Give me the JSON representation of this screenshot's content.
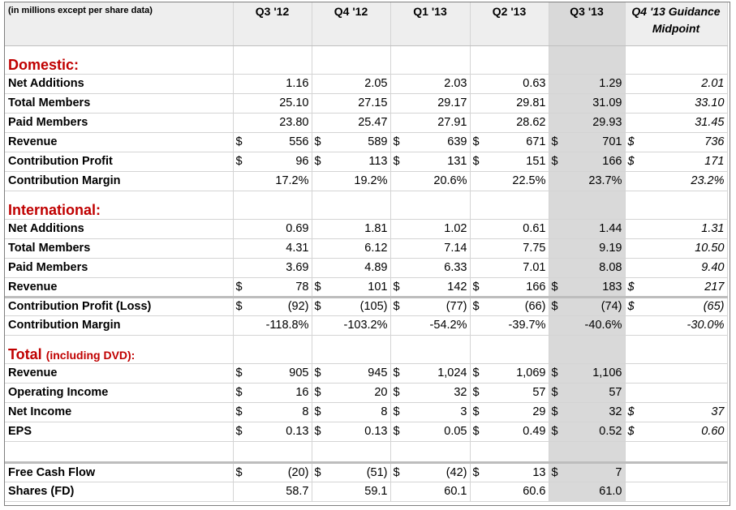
{
  "header": {
    "corner": "(in millions except per share data)",
    "quarters": [
      "Q3 '12",
      "Q4 '12",
      "Q1 '13",
      "Q2 '13",
      "Q3 '13"
    ],
    "guidance": "Q4 '13 Guidance Midpoint"
  },
  "sections": {
    "domestic": "Domestic:",
    "international": "International:",
    "total": "Total",
    "total_sub": "(including DVD):"
  },
  "rows": {
    "d_net_add": {
      "label": "Net Additions",
      "values": [
        "1.16",
        "2.05",
        "2.03",
        "0.63",
        "1.29"
      ],
      "guidance": "2.01"
    },
    "d_total_mem": {
      "label": "Total Members",
      "values": [
        "25.10",
        "27.15",
        "29.17",
        "29.81",
        "31.09"
      ],
      "guidance": "33.10"
    },
    "d_paid_mem": {
      "label": "Paid Members",
      "values": [
        "23.80",
        "25.47",
        "27.91",
        "28.62",
        "29.93"
      ],
      "guidance": "31.45"
    },
    "d_revenue": {
      "label": "Revenue",
      "values": [
        "556",
        "589",
        "639",
        "671",
        "701"
      ],
      "guidance": "736"
    },
    "d_contrib": {
      "label": "Contribution Profit",
      "values": [
        "96",
        "113",
        "131",
        "151",
        "166"
      ],
      "guidance": "171"
    },
    "d_margin": {
      "label": "Contribution Margin",
      "values": [
        "17.2%",
        "19.2%",
        "20.6%",
        "22.5%",
        "23.7%"
      ],
      "guidance": "23.2%"
    },
    "i_net_add": {
      "label": "Net Additions",
      "values": [
        "0.69",
        "1.81",
        "1.02",
        "0.61",
        "1.44"
      ],
      "guidance": "1.31"
    },
    "i_total_mem": {
      "label": "Total Members",
      "values": [
        "4.31",
        "6.12",
        "7.14",
        "7.75",
        "9.19"
      ],
      "guidance": "10.50"
    },
    "i_paid_mem": {
      "label": "Paid Members",
      "values": [
        "3.69",
        "4.89",
        "6.33",
        "7.01",
        "8.08"
      ],
      "guidance": "9.40"
    },
    "i_revenue": {
      "label": "Revenue",
      "values": [
        "78",
        "101",
        "142",
        "166",
        "183"
      ],
      "guidance": "217"
    },
    "i_contrib": {
      "label": "Contribution Profit (Loss)",
      "values": [
        "(92)",
        "(105)",
        "(77)",
        "(66)",
        "(74)"
      ],
      "guidance": "(65)"
    },
    "i_margin": {
      "label": "Contribution Margin",
      "values": [
        "-118.8%",
        "-103.2%",
        "-54.2%",
        "-39.7%",
        "-40.6%"
      ],
      "guidance": "-30.0%"
    },
    "t_revenue": {
      "label": "Revenue",
      "values": [
        "905",
        "945",
        "1,024",
        "1,069",
        "1,106"
      ],
      "guidance": ""
    },
    "t_op_income": {
      "label": "Operating Income",
      "values": [
        "16",
        "20",
        "32",
        "57",
        "57"
      ],
      "guidance": ""
    },
    "t_net_income": {
      "label": "Net Income",
      "values": [
        "8",
        "8",
        "3",
        "29",
        "32"
      ],
      "guidance": "37"
    },
    "t_eps": {
      "label": "EPS",
      "values": [
        "0.13",
        "0.13",
        "0.05",
        "0.49",
        "0.52"
      ],
      "guidance": "0.60"
    },
    "fcf": {
      "label": "Free Cash Flow",
      "values": [
        "(20)",
        "(51)",
        "(42)",
        "13",
        "7"
      ],
      "guidance": ""
    },
    "shares": {
      "label": "Shares (FD)",
      "values": [
        "58.7",
        "59.1",
        "60.1",
        "60.6",
        "61.0"
      ],
      "guidance": ""
    }
  },
  "currency_symbol": "$"
}
